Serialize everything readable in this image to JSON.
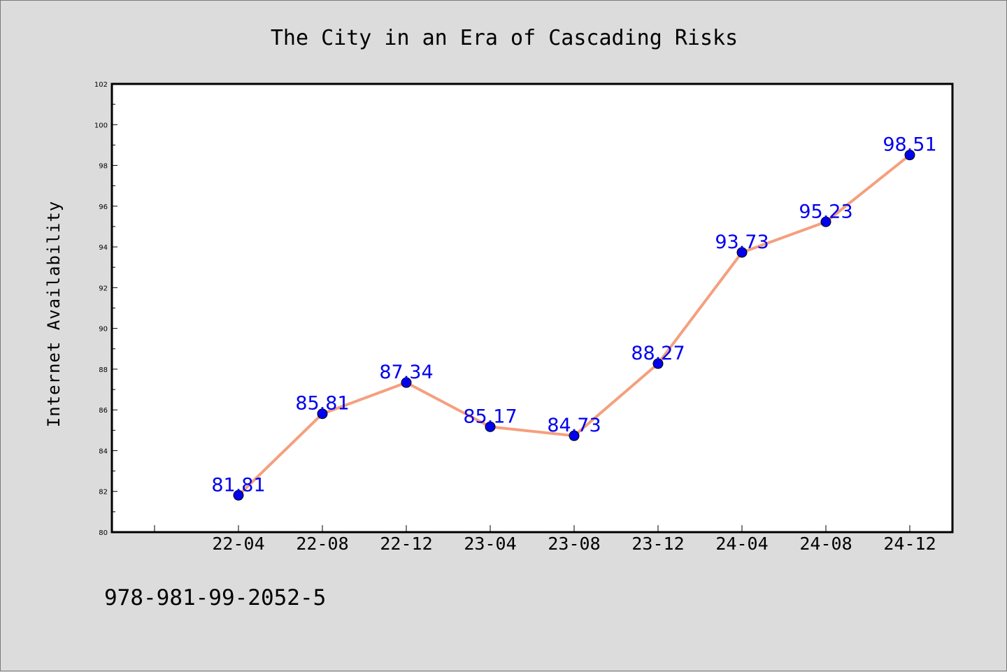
{
  "chart_data": {
    "type": "line",
    "title": "The City in an Era of Cascading Risks",
    "xlabel": "",
    "ylabel": "Internet Availability",
    "categories": [
      "22-04",
      "22-08",
      "22-12",
      "23-04",
      "23-08",
      "23-12",
      "24-04",
      "24-08",
      "24-12"
    ],
    "series": [
      {
        "values": [
          81.81,
          85.81,
          87.34,
          85.17,
          84.73,
          88.27,
          93.73,
          95.23,
          98.51
        ]
      }
    ],
    "ylim": [
      80,
      102
    ],
    "yticks": [
      80,
      82,
      84,
      86,
      88,
      90,
      92,
      94,
      96,
      98,
      100,
      102
    ],
    "grid": false,
    "data_labels": true,
    "colors": {
      "line": "#f4a07e",
      "marker": "#0000ee",
      "data_label": "#0000ee",
      "plot_background": "#ffffff",
      "figure_background": "#dcdcdc"
    }
  },
  "footer_text": "978-981-99-2052-5"
}
